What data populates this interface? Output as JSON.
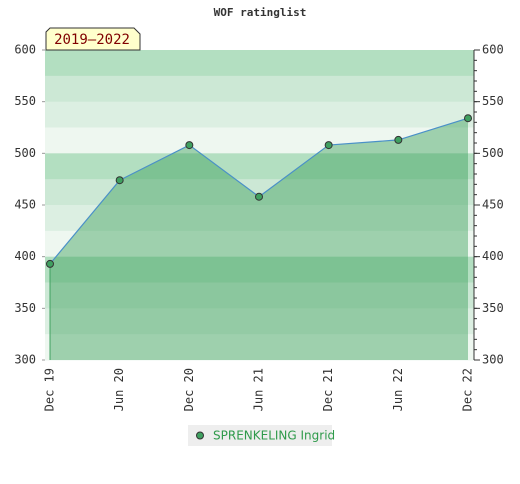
{
  "chart_data": {
    "type": "area",
    "title": "WOF ratinglist",
    "annotation": "2019–2022",
    "categories": [
      "Dec 19",
      "Jun 20",
      "Dec 20",
      "Jun 21",
      "Dec 21",
      "Jun 22",
      "Dec 22"
    ],
    "series": [
      {
        "name": "SPRENKELING Ingrid",
        "color": "#4a90c8",
        "values": [
          393,
          474,
          508,
          458,
          508,
          513,
          534
        ]
      }
    ],
    "ylim": [
      300,
      600
    ],
    "yticks": [
      300,
      350,
      400,
      450,
      500,
      550,
      600
    ],
    "y2lim": [
      300,
      600
    ],
    "y2ticks": [
      300,
      350,
      400,
      450,
      500,
      550,
      600
    ]
  }
}
